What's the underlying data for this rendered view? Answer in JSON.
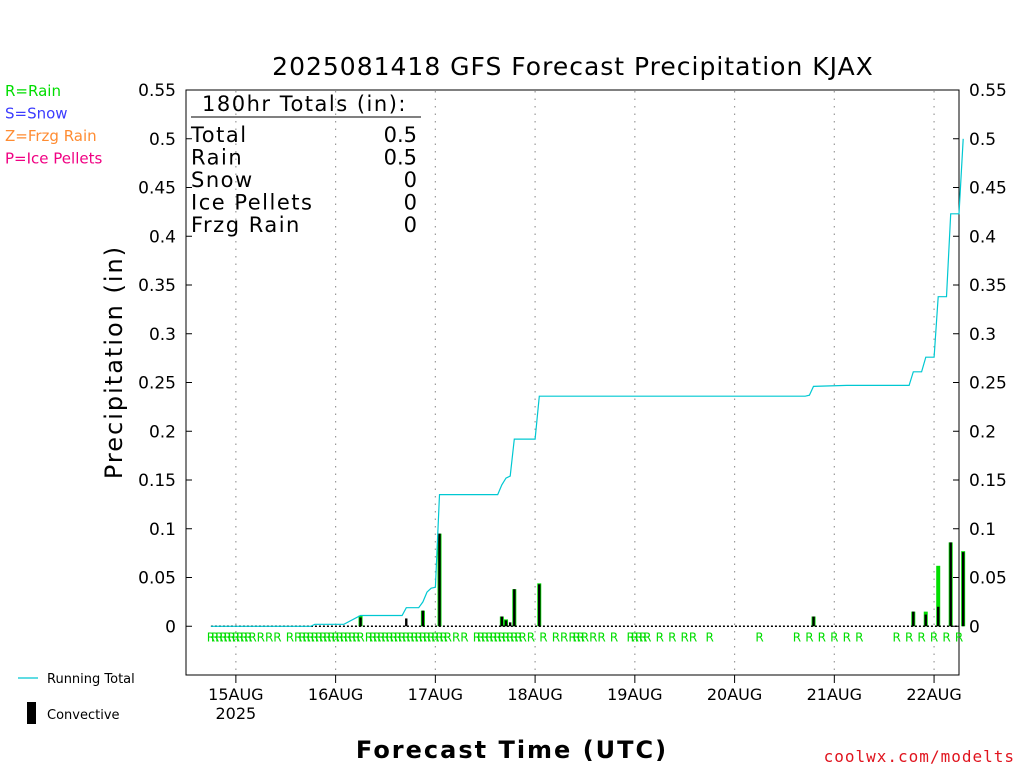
{
  "chart_data": {
    "type": "bar",
    "title": "2025081418 GFS Forecast Precipitation KJAX",
    "xlabel": "Forecast Time (UTC)",
    "ylabel": "Precipitation (in)",
    "ylim": [
      -0.05,
      0.55
    ],
    "yticks": [
      0,
      0.05,
      0.1,
      0.15,
      0.2,
      0.25,
      0.3,
      0.35,
      0.4,
      0.45,
      0.5,
      0.55
    ],
    "ytick_labels": [
      "0",
      "0.05",
      "0.1",
      "0.15",
      "0.2",
      "0.25",
      "0.3",
      "0.35",
      "0.4",
      "0.45",
      "0.5",
      "0.55"
    ],
    "x_unit": "forecast hour",
    "xlim": [
      -6,
      180
    ],
    "xticks": [
      {
        "hour": 6,
        "label": "15AUG",
        "sublabel": "2025"
      },
      {
        "hour": 30,
        "label": "16AUG",
        "sublabel": ""
      },
      {
        "hour": 54,
        "label": "17AUG",
        "sublabel": ""
      },
      {
        "hour": 78,
        "label": "18AUG",
        "sublabel": ""
      },
      {
        "hour": 102,
        "label": "19AUG",
        "sublabel": ""
      },
      {
        "hour": 126,
        "label": "20AUG",
        "sublabel": ""
      },
      {
        "hour": 150,
        "label": "21AUG",
        "sublabel": ""
      },
      {
        "hour": 174,
        "label": "22AUG",
        "sublabel": ""
      }
    ],
    "grid": "vertical dotted at day boundaries",
    "legend_left": [
      {
        "label": "R=Rain",
        "color": "#00dd00"
      },
      {
        "label": "S=Snow",
        "color": "#3c3cff"
      },
      {
        "label": "Z=Frzg Rain",
        "color": "#ff8c32"
      },
      {
        "label": "P=Ice Pellets",
        "color": "#f00082"
      }
    ],
    "legend_bottom": [
      {
        "label": "Running Total",
        "color": "#00c8d2",
        "kind": "line"
      },
      {
        "label": "Convective",
        "color": "#000000",
        "kind": "bar"
      }
    ],
    "totals_box": {
      "header": "180hr Totals (in):",
      "rows": [
        {
          "label": "Total",
          "value": "0.5"
        },
        {
          "label": "Rain",
          "value": "0.5"
        },
        {
          "label": "Snow",
          "value": "0"
        },
        {
          "label": "Ice Pellets",
          "value": "0"
        },
        {
          "label": "Frzg Rain",
          "value": "0"
        }
      ]
    },
    "series": [
      {
        "name": "Running Total",
        "color": "#00c8d2",
        "points": [
          [
            0,
            0
          ],
          [
            24,
            0
          ],
          [
            25,
            0.002
          ],
          [
            32,
            0.002
          ],
          [
            36,
            0.011
          ],
          [
            46,
            0.011
          ],
          [
            47,
            0.019
          ],
          [
            50,
            0.019
          ],
          [
            51,
            0.025
          ],
          [
            52,
            0.035
          ],
          [
            53,
            0.039
          ],
          [
            54,
            0.04
          ],
          [
            55,
            0.135
          ],
          [
            69,
            0.135
          ],
          [
            70,
            0.145
          ],
          [
            71,
            0.152
          ],
          [
            72,
            0.154
          ],
          [
            73,
            0.192
          ],
          [
            78,
            0.192
          ],
          [
            79,
            0.236
          ],
          [
            143,
            0.236
          ],
          [
            144,
            0.237
          ],
          [
            145,
            0.246
          ],
          [
            153,
            0.247
          ],
          [
            168,
            0.247
          ],
          [
            169,
            0.261
          ],
          [
            171,
            0.261
          ],
          [
            172,
            0.276
          ],
          [
            174,
            0.276
          ],
          [
            175,
            0.338
          ],
          [
            177,
            0.338
          ],
          [
            178,
            0.423
          ],
          [
            180,
            0.423
          ],
          [
            181,
            0.5
          ]
        ]
      },
      {
        "name": "Rain",
        "color": "#00dd00",
        "bars": [
          {
            "hour": 36,
            "value": 0.011
          },
          {
            "hour": 51,
            "value": 0.016
          },
          {
            "hour": 55,
            "value": 0.095
          },
          {
            "hour": 70,
            "value": 0.01
          },
          {
            "hour": 71,
            "value": 0.007
          },
          {
            "hour": 73,
            "value": 0.038
          },
          {
            "hour": 79,
            "value": 0.044
          },
          {
            "hour": 145,
            "value": 0.01
          },
          {
            "hour": 169,
            "value": 0.015
          },
          {
            "hour": 172,
            "value": 0.015
          },
          {
            "hour": 175,
            "value": 0.062
          },
          {
            "hour": 178,
            "value": 0.086
          },
          {
            "hour": 181,
            "value": 0.077
          }
        ]
      },
      {
        "name": "Convective",
        "color": "#000000",
        "bars": [
          {
            "hour": 36,
            "value": 0.009
          },
          {
            "hour": 47,
            "value": 0.008
          },
          {
            "hour": 51,
            "value": 0.016
          },
          {
            "hour": 55,
            "value": 0.095
          },
          {
            "hour": 70,
            "value": 0.01
          },
          {
            "hour": 71,
            "value": 0.006
          },
          {
            "hour": 72,
            "value": 0.004
          },
          {
            "hour": 73,
            "value": 0.038
          },
          {
            "hour": 79,
            "value": 0.043
          },
          {
            "hour": 145,
            "value": 0.01
          },
          {
            "hour": 169,
            "value": 0.015
          },
          {
            "hour": 172,
            "value": 0.012
          },
          {
            "hour": 175,
            "value": 0.02
          },
          {
            "hour": 178,
            "value": 0.086
          },
          {
            "hour": 181,
            "value": 0.076
          }
        ]
      }
    ],
    "precip_type_markers": {
      "label": "R",
      "color": "#00dd00",
      "hours": [
        0,
        1,
        2,
        3,
        4,
        5,
        6,
        7,
        8,
        9,
        10,
        12,
        14,
        16,
        19,
        21,
        22,
        23,
        24,
        25,
        26,
        27,
        28,
        29,
        30,
        31,
        32,
        33,
        34,
        35,
        36,
        38,
        39,
        40,
        41,
        42,
        43,
        44,
        45,
        46,
        47,
        48,
        49,
        50,
        51,
        52,
        53,
        54,
        55,
        56,
        57,
        59,
        61,
        64,
        65,
        66,
        67,
        68,
        69,
        70,
        71,
        72,
        73,
        74,
        75,
        77,
        80,
        83,
        85,
        87,
        88,
        89,
        90,
        92,
        94,
        97,
        101,
        102,
        103,
        104,
        105,
        108,
        111,
        114,
        116,
        120,
        132,
        141,
        144,
        147,
        150,
        153,
        156,
        165,
        168,
        171,
        174,
        177,
        180
      ]
    }
  },
  "watermark": "coolwx.com/modelts"
}
